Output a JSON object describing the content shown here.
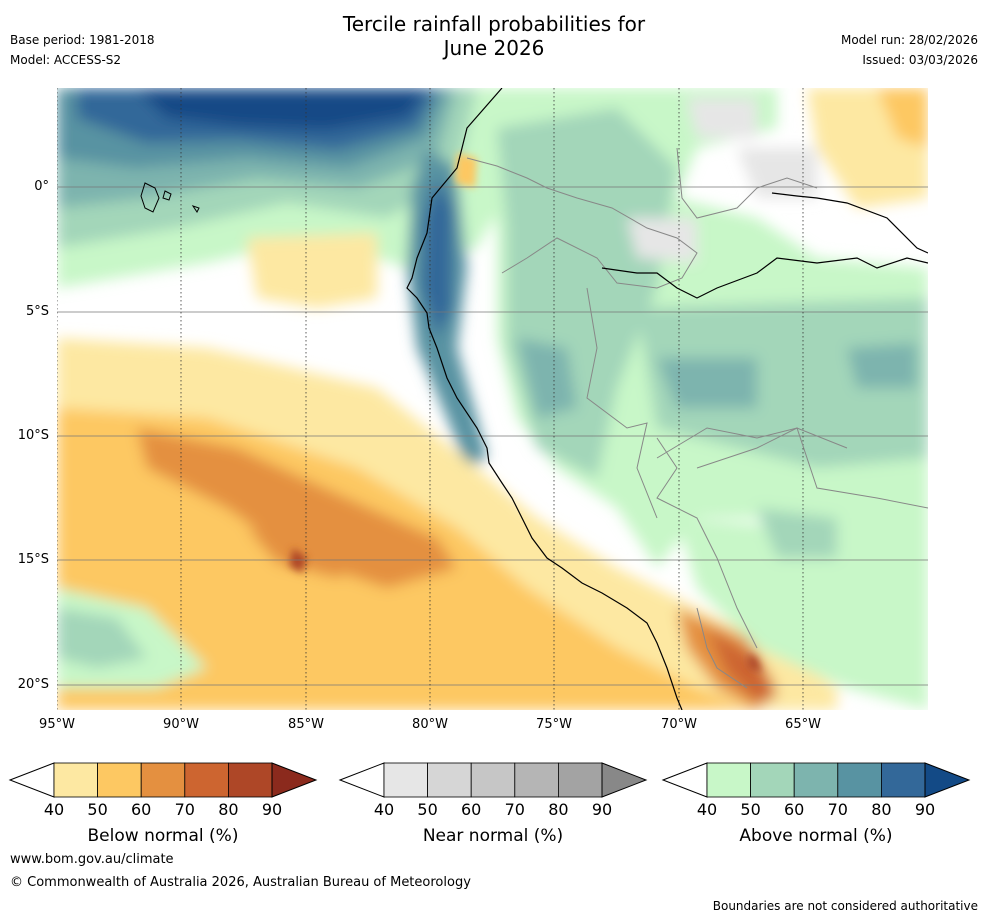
{
  "header": {
    "title_line1": "Tercile rainfall probabilities for",
    "title_line2": "June 2026",
    "base_period": "Base period: 1981-2018",
    "model": "Model: ACCESS-S2",
    "model_run": "Model run: 28/02/2026",
    "issued": "Issued: 03/03/2026"
  },
  "axes": {
    "lat_labels": [
      "0°",
      "5°S",
      "10°S",
      "15°S",
      "20°S"
    ],
    "lon_labels": [
      "95°W",
      "90°W",
      "85°W",
      "80°W",
      "75°W",
      "70°W",
      "65°W"
    ]
  },
  "colorbars": [
    {
      "name": "below",
      "label": "Below normal (%)",
      "ticks": [
        "40",
        "50",
        "60",
        "70",
        "80",
        "90"
      ],
      "colors": [
        "#fde8a2",
        "#fdc862",
        "#e49040",
        "#cd6530",
        "#ae4727",
        "#8b2a1d"
      ]
    },
    {
      "name": "near",
      "label": "Near normal (%)",
      "ticks": [
        "40",
        "50",
        "60",
        "70",
        "80",
        "90"
      ],
      "colors": [
        "#e6e6e6",
        "#d6d6d6",
        "#c6c6c6",
        "#b5b5b5",
        "#a3a3a3",
        "#888888"
      ]
    },
    {
      "name": "above",
      "label": "Above normal (%)",
      "ticks": [
        "40",
        "50",
        "60",
        "70",
        "80",
        "90"
      ],
      "colors": [
        "#c8f7c8",
        "#a3d6b9",
        "#7db4ae",
        "#5893a2",
        "#336899",
        "#134a86"
      ]
    }
  ],
  "footer": {
    "url": "www.bom.gov.au/climate",
    "copyright": "© Commonwealth of Australia 2026, Australian Bureau of Meteorology",
    "disclaimer": "Boundaries are not considered authoritative"
  }
}
